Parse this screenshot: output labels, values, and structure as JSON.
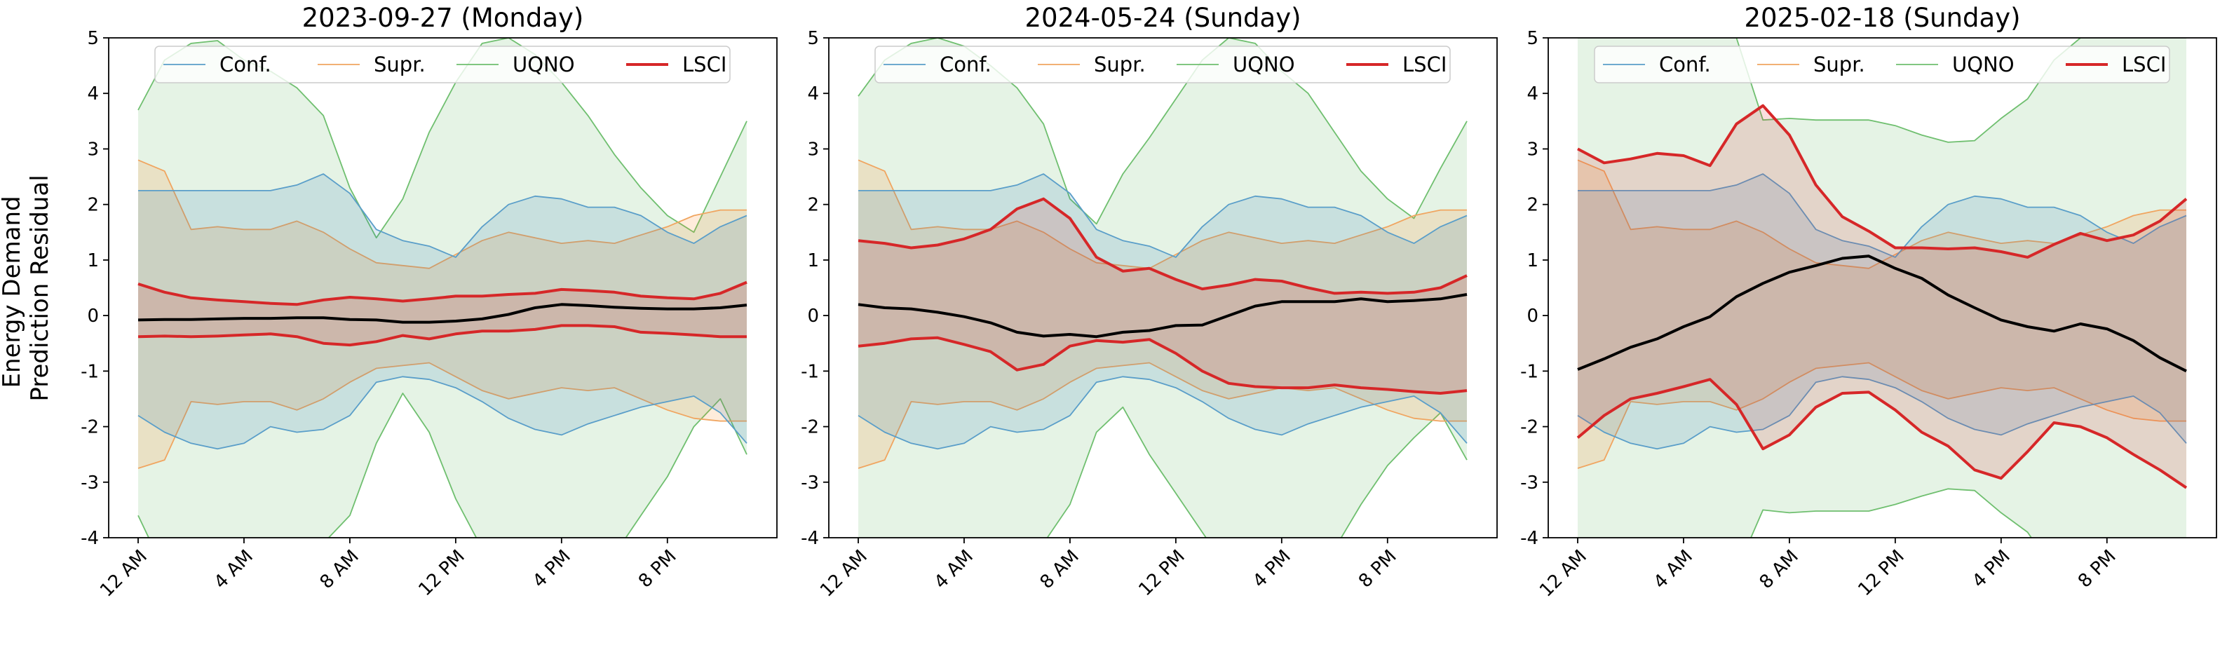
{
  "figure": {
    "ylabel_line1": "Energy Demand",
    "ylabel_line2": "Prediction Residual"
  },
  "legend": {
    "conf": "Conf.",
    "supr": "Supr.",
    "uqno": "UQNO",
    "lsci": "LSCI"
  },
  "colors": {
    "conf": "#5a9ec9",
    "conf_fill": "#1f77b4",
    "supr": "#f0a560",
    "supr_fill": "#ff7f0e",
    "uqno": "#6fbf6f",
    "uqno_fill": "#2ca02c",
    "lsci": "#d62728",
    "lsci_fill": "#d62728",
    "truth": "#000000"
  },
  "chart_data": [
    {
      "type": "line",
      "title": "2023-09-27 (Monday)",
      "xlabel": "",
      "ylabel": "Energy Demand Prediction Residual",
      "ylim": [
        -4,
        5
      ],
      "y_ticks": [
        5,
        4,
        3,
        2,
        1,
        0,
        -1,
        -2,
        -3,
        -4
      ],
      "x_hours": [
        0,
        4,
        8,
        12,
        16,
        20
      ],
      "x_tick_labels": [
        "12 AM",
        "4 AM",
        "8 AM",
        "12 PM",
        "4 PM",
        "8 PM"
      ],
      "grid": false,
      "legend_position": "top-center",
      "x": [
        0,
        1,
        2,
        3,
        4,
        5,
        6,
        7,
        8,
        9,
        10,
        11,
        12,
        13,
        14,
        15,
        16,
        17,
        18,
        19,
        20,
        21,
        22,
        23
      ],
      "series": [
        {
          "key": "uqno",
          "lower": [
            -3.6,
            -4.6,
            -5.0,
            -5.0,
            -5.0,
            -5.0,
            -4.8,
            -4.1,
            -3.6,
            -2.3,
            -1.4,
            -2.1,
            -3.3,
            -4.2,
            -5.0,
            -5.1,
            -5.2,
            -5.0,
            -4.3,
            -3.6,
            -2.9,
            -2.0,
            -1.5,
            -2.5
          ],
          "upper": [
            3.7,
            4.6,
            4.9,
            4.95,
            4.6,
            4.4,
            4.1,
            3.6,
            2.3,
            1.4,
            2.1,
            3.3,
            4.2,
            4.9,
            5.0,
            4.7,
            4.2,
            3.6,
            2.9,
            2.3,
            1.8,
            1.5,
            2.5,
            3.5
          ]
        },
        {
          "key": "supr",
          "lower": [
            -2.75,
            -2.6,
            -1.55,
            -1.6,
            -1.55,
            -1.55,
            -1.7,
            -1.5,
            -1.2,
            -0.95,
            -0.9,
            -0.85,
            -1.1,
            -1.35,
            -1.5,
            -1.4,
            -1.3,
            -1.35,
            -1.3,
            -1.5,
            -1.7,
            -1.85,
            -1.9,
            -1.9
          ],
          "upper": [
            2.8,
            2.6,
            1.55,
            1.6,
            1.55,
            1.55,
            1.7,
            1.5,
            1.2,
            0.95,
            0.9,
            0.85,
            1.1,
            1.35,
            1.5,
            1.4,
            1.3,
            1.35,
            1.3,
            1.45,
            1.6,
            1.8,
            1.9,
            1.9
          ]
        },
        {
          "key": "conf",
          "lower": [
            -1.8,
            -2.1,
            -2.3,
            -2.4,
            -2.3,
            -2.0,
            -2.1,
            -2.05,
            -1.8,
            -1.2,
            -1.1,
            -1.15,
            -1.3,
            -1.55,
            -1.85,
            -2.05,
            -2.15,
            -1.95,
            -1.8,
            -1.65,
            -1.55,
            -1.45,
            -1.75,
            -2.3
          ],
          "upper": [
            2.25,
            2.25,
            2.25,
            2.25,
            2.25,
            2.25,
            2.35,
            2.55,
            2.2,
            1.55,
            1.35,
            1.25,
            1.05,
            1.6,
            2.0,
            2.15,
            2.1,
            1.95,
            1.95,
            1.8,
            1.5,
            1.3,
            1.6,
            1.8
          ]
        },
        {
          "key": "lsci",
          "lower": [
            -0.38,
            -0.37,
            -0.38,
            -0.37,
            -0.35,
            -0.33,
            -0.38,
            -0.5,
            -0.53,
            -0.47,
            -0.36,
            -0.42,
            -0.33,
            -0.28,
            -0.28,
            -0.25,
            -0.18,
            -0.18,
            -0.2,
            -0.3,
            -0.32,
            -0.35,
            -0.38,
            -0.38
          ],
          "upper": [
            0.57,
            0.42,
            0.32,
            0.28,
            0.25,
            0.22,
            0.2,
            0.28,
            0.33,
            0.3,
            0.26,
            0.3,
            0.35,
            0.35,
            0.38,
            0.4,
            0.47,
            0.45,
            0.42,
            0.35,
            0.32,
            0.3,
            0.4,
            0.6
          ]
        },
        {
          "key": "truth",
          "values": [
            -0.08,
            -0.07,
            -0.07,
            -0.06,
            -0.05,
            -0.05,
            -0.04,
            -0.04,
            -0.07,
            -0.08,
            -0.12,
            -0.12,
            -0.1,
            -0.06,
            0.02,
            0.14,
            0.2,
            0.18,
            0.15,
            0.13,
            0.12,
            0.12,
            0.14,
            0.19
          ]
        }
      ]
    },
    {
      "type": "line",
      "title": "2024-05-24 (Sunday)",
      "xlabel": "",
      "ylabel": "",
      "ylim": [
        -4,
        5
      ],
      "y_ticks": [
        5,
        4,
        3,
        2,
        1,
        0,
        -1,
        -2,
        -3,
        -4
      ],
      "x_hours": [
        0,
        4,
        8,
        12,
        16,
        20
      ],
      "x_tick_labels": [
        "12 AM",
        "4 AM",
        "8 AM",
        "12 PM",
        "4 PM",
        "8 PM"
      ],
      "grid": false,
      "legend_position": "top-center",
      "x": [
        0,
        1,
        2,
        3,
        4,
        5,
        6,
        7,
        8,
        9,
        10,
        11,
        12,
        13,
        14,
        15,
        16,
        17,
        18,
        19,
        20,
        21,
        22,
        23
      ],
      "series": [
        {
          "key": "uqno",
          "lower": [
            -4.0,
            -4.6,
            -5.0,
            -5.0,
            -5.0,
            -5.0,
            -4.7,
            -4.1,
            -3.4,
            -2.1,
            -1.65,
            -2.5,
            -3.2,
            -3.9,
            -4.6,
            -5.0,
            -5.2,
            -5.0,
            -4.2,
            -3.4,
            -2.7,
            -2.2,
            -1.75,
            -2.6
          ],
          "upper": [
            3.95,
            4.6,
            4.9,
            5.0,
            4.85,
            4.5,
            4.1,
            3.45,
            2.1,
            1.65,
            2.55,
            3.2,
            3.9,
            4.6,
            5.0,
            4.9,
            4.4,
            4.0,
            3.3,
            2.6,
            2.1,
            1.75,
            2.65,
            3.5
          ]
        },
        {
          "key": "supr",
          "lower": [
            -2.75,
            -2.6,
            -1.55,
            -1.6,
            -1.55,
            -1.55,
            -1.7,
            -1.5,
            -1.2,
            -0.95,
            -0.9,
            -0.85,
            -1.1,
            -1.35,
            -1.5,
            -1.4,
            -1.3,
            -1.35,
            -1.3,
            -1.5,
            -1.7,
            -1.85,
            -1.9,
            -1.9
          ],
          "upper": [
            2.8,
            2.6,
            1.55,
            1.6,
            1.55,
            1.55,
            1.7,
            1.5,
            1.2,
            0.95,
            0.9,
            0.85,
            1.1,
            1.35,
            1.5,
            1.4,
            1.3,
            1.35,
            1.3,
            1.45,
            1.6,
            1.8,
            1.9,
            1.9
          ]
        },
        {
          "key": "conf",
          "lower": [
            -1.8,
            -2.1,
            -2.3,
            -2.4,
            -2.3,
            -2.0,
            -2.1,
            -2.05,
            -1.8,
            -1.2,
            -1.1,
            -1.15,
            -1.3,
            -1.55,
            -1.85,
            -2.05,
            -2.15,
            -1.95,
            -1.8,
            -1.65,
            -1.55,
            -1.45,
            -1.75,
            -2.3
          ],
          "upper": [
            2.25,
            2.25,
            2.25,
            2.25,
            2.25,
            2.25,
            2.35,
            2.55,
            2.2,
            1.55,
            1.35,
            1.25,
            1.05,
            1.6,
            2.0,
            2.15,
            2.1,
            1.95,
            1.95,
            1.8,
            1.5,
            1.3,
            1.6,
            1.8
          ]
        },
        {
          "key": "lsci",
          "lower": [
            -0.55,
            -0.5,
            -0.42,
            -0.4,
            -0.52,
            -0.65,
            -0.98,
            -0.88,
            -0.55,
            -0.45,
            -0.48,
            -0.43,
            -0.68,
            -1.0,
            -1.22,
            -1.28,
            -1.3,
            -1.3,
            -1.25,
            -1.3,
            -1.33,
            -1.37,
            -1.4,
            -1.35
          ],
          "upper": [
            1.35,
            1.3,
            1.22,
            1.27,
            1.38,
            1.55,
            1.92,
            2.1,
            1.75,
            1.05,
            0.8,
            0.85,
            0.65,
            0.48,
            0.55,
            0.65,
            0.62,
            0.5,
            0.4,
            0.42,
            0.4,
            0.42,
            0.5,
            0.72
          ]
        },
        {
          "key": "truth",
          "values": [
            0.2,
            0.14,
            0.12,
            0.06,
            -0.02,
            -0.13,
            -0.3,
            -0.37,
            -0.34,
            -0.38,
            -0.3,
            -0.27,
            -0.18,
            -0.17,
            0.0,
            0.17,
            0.25,
            0.25,
            0.25,
            0.3,
            0.25,
            0.27,
            0.3,
            0.38
          ]
        }
      ]
    },
    {
      "type": "line",
      "title": "2025-02-18 (Sunday)",
      "xlabel": "",
      "ylabel": "",
      "ylim": [
        -4,
        5
      ],
      "y_ticks": [
        5,
        4,
        3,
        2,
        1,
        0,
        -1,
        -2,
        -3,
        -4
      ],
      "x_hours": [
        0,
        4,
        8,
        12,
        16,
        20
      ],
      "x_tick_labels": [
        "12 AM",
        "4 AM",
        "8 AM",
        "12 PM",
        "4 PM",
        "8 PM"
      ],
      "grid": false,
      "legend_position": "top-center",
      "x": [
        0,
        1,
        2,
        3,
        4,
        5,
        6,
        7,
        8,
        9,
        10,
        11,
        12,
        13,
        14,
        15,
        16,
        17,
        18,
        19,
        20,
        21,
        22,
        23
      ],
      "series": [
        {
          "key": "uqno",
          "lower": [
            -5.5,
            -5.5,
            -5.5,
            -5.5,
            -5.5,
            -5.5,
            -4.6,
            -3.5,
            -3.55,
            -3.52,
            -3.52,
            -3.52,
            -3.4,
            -3.25,
            -3.12,
            -3.15,
            -3.55,
            -3.9,
            -4.6,
            -5.5,
            -5.5,
            -5.5,
            -5.5,
            -5.5
          ],
          "upper": [
            5.5,
            5.5,
            5.5,
            5.5,
            5.5,
            5.5,
            5.0,
            3.52,
            3.55,
            3.52,
            3.52,
            3.52,
            3.42,
            3.25,
            3.12,
            3.15,
            3.55,
            3.9,
            4.6,
            5.0,
            5.5,
            5.5,
            5.5,
            5.5
          ]
        },
        {
          "key": "supr",
          "lower": [
            -2.75,
            -2.6,
            -1.55,
            -1.6,
            -1.55,
            -1.55,
            -1.7,
            -1.5,
            -1.2,
            -0.95,
            -0.9,
            -0.85,
            -1.1,
            -1.35,
            -1.5,
            -1.4,
            -1.3,
            -1.35,
            -1.3,
            -1.5,
            -1.7,
            -1.85,
            -1.9,
            -1.9
          ],
          "upper": [
            2.8,
            2.6,
            1.55,
            1.6,
            1.55,
            1.55,
            1.7,
            1.5,
            1.2,
            0.95,
            0.9,
            0.85,
            1.1,
            1.35,
            1.5,
            1.4,
            1.3,
            1.35,
            1.3,
            1.45,
            1.6,
            1.8,
            1.9,
            1.9
          ]
        },
        {
          "key": "conf",
          "lower": [
            -1.8,
            -2.1,
            -2.3,
            -2.4,
            -2.3,
            -2.0,
            -2.1,
            -2.05,
            -1.8,
            -1.2,
            -1.1,
            -1.15,
            -1.3,
            -1.55,
            -1.85,
            -2.05,
            -2.15,
            -1.95,
            -1.8,
            -1.65,
            -1.55,
            -1.45,
            -1.75,
            -2.3
          ],
          "upper": [
            2.25,
            2.25,
            2.25,
            2.25,
            2.25,
            2.25,
            2.35,
            2.55,
            2.2,
            1.55,
            1.35,
            1.25,
            1.05,
            1.6,
            2.0,
            2.15,
            2.1,
            1.95,
            1.95,
            1.8,
            1.5,
            1.3,
            1.6,
            1.8
          ]
        },
        {
          "key": "lsci",
          "lower": [
            -2.2,
            -1.8,
            -1.5,
            -1.4,
            -1.28,
            -1.15,
            -1.6,
            -2.4,
            -2.15,
            -1.65,
            -1.4,
            -1.38,
            -1.7,
            -2.1,
            -2.35,
            -2.78,
            -2.93,
            -2.45,
            -1.93,
            -2.0,
            -2.2,
            -2.5,
            -2.78,
            -3.1
          ],
          "upper": [
            3.0,
            2.75,
            2.82,
            2.92,
            2.88,
            2.7,
            3.45,
            3.78,
            3.25,
            2.35,
            1.78,
            1.52,
            1.22,
            1.22,
            1.2,
            1.22,
            1.15,
            1.05,
            1.28,
            1.48,
            1.35,
            1.45,
            1.7,
            2.1
          ]
        },
        {
          "key": "truth",
          "values": [
            -0.97,
            -0.78,
            -0.57,
            -0.42,
            -0.2,
            -0.02,
            0.34,
            0.58,
            0.78,
            0.9,
            1.03,
            1.07,
            0.85,
            0.67,
            0.37,
            0.14,
            -0.08,
            -0.2,
            -0.28,
            -0.15,
            -0.24,
            -0.45,
            -0.76,
            -1.0
          ]
        }
      ]
    }
  ]
}
